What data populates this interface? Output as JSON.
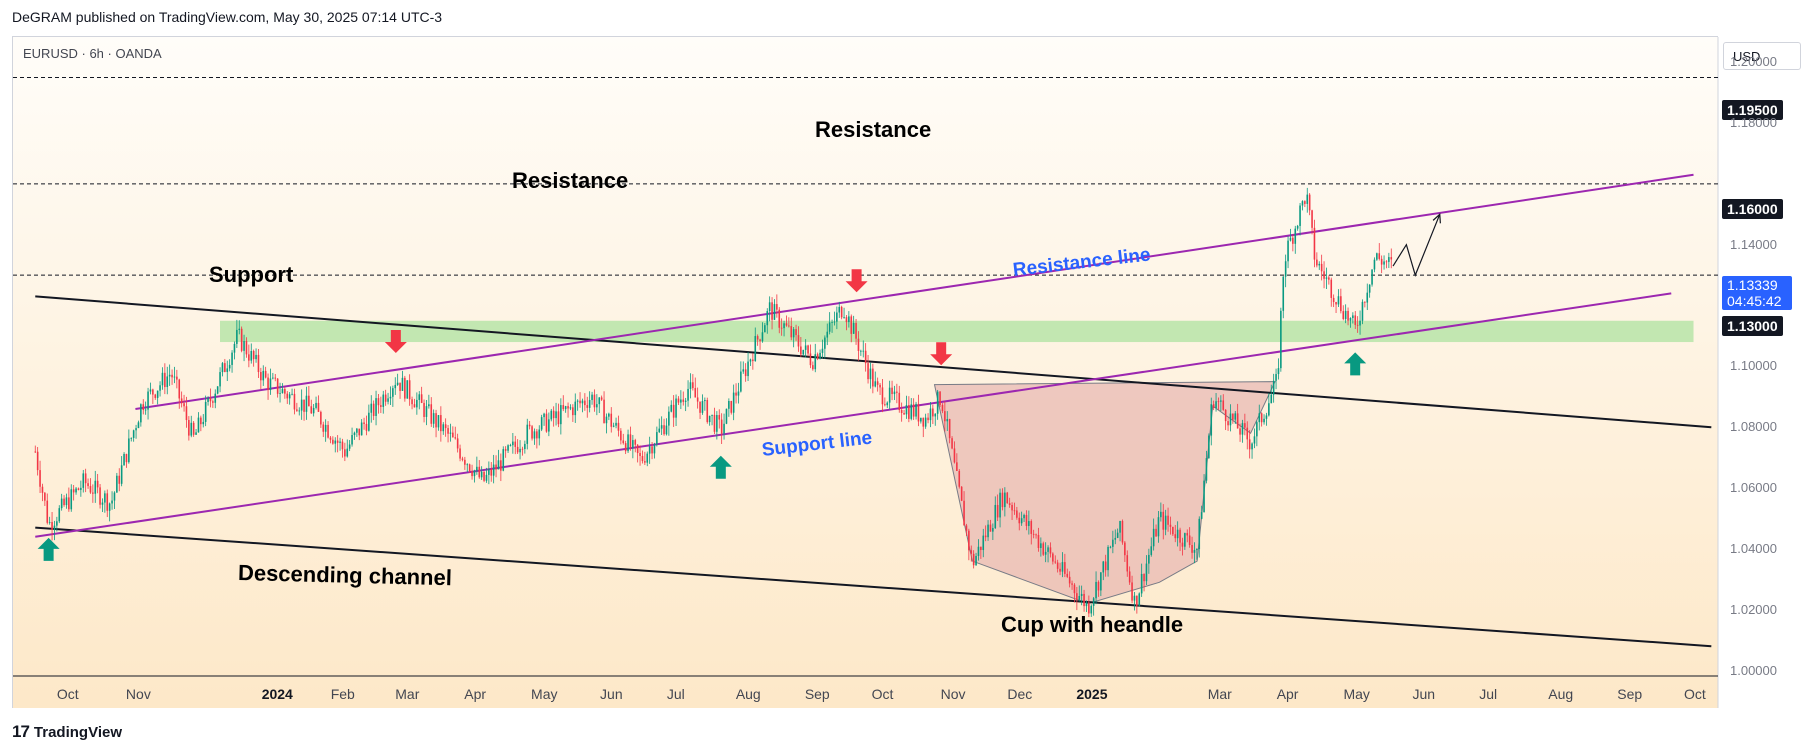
{
  "header": {
    "publisher": "DeGRAM published on TradingView.com, May 30, 2025 07:14 UTC-3"
  },
  "symbol_line": "EURUSD · 6h · OANDA",
  "currency": "USD",
  "footer": {
    "brand": "TradingView",
    "logo": "17"
  },
  "price_labels": {
    "p1": "1.19500",
    "p2": "1.16000",
    "p3": "1.13000"
  },
  "current_price": {
    "price": "1.13339",
    "countdown": "04:45:42"
  },
  "annotations": {
    "resistance_top": "Resistance",
    "resistance_mid": "Resistance",
    "support": "Support",
    "descending_channel": "Descending channel",
    "cup": "Cup with heandle",
    "resistance_line": "Resistance line",
    "support_line": "Support line"
  },
  "colors": {
    "bull": "#089981",
    "bear": "#f23645",
    "channel": "#131722",
    "trendline": "#9c27b0",
    "label_blue": "#2962ff",
    "support_zone": "#b7e4a8",
    "cup_fill": "#e7b7b0",
    "arrow_up": "#089981",
    "arrow_down": "#f23645"
  },
  "chart_data": {
    "type": "candlestick",
    "title": "",
    "symbol": "EURUSD",
    "timeframe": "6h",
    "exchange": "OANDA",
    "y_range": [
      1.0,
      1.21
    ],
    "y_ticks": [
      "1.20000",
      "1.18000",
      "1.14000",
      "1.10000",
      "1.08000",
      "1.06000",
      "1.04000",
      "1.02000",
      "1.00000"
    ],
    "x_ticks": [
      "Oct",
      "Nov",
      "2024",
      "Feb",
      "Mar",
      "Apr",
      "May",
      "Jun",
      "Jul",
      "Aug",
      "Sep",
      "Oct",
      "Nov",
      "Dec",
      "2025",
      "Mar",
      "Apr",
      "May",
      "Jun",
      "Jul",
      "Aug",
      "Sep",
      "Oct"
    ],
    "x_ticks_bold": [
      2,
      14
    ],
    "price_path": [
      [
        "2023-09-28",
        1.072
      ],
      [
        "2023-10-04",
        1.048
      ],
      [
        "2023-10-20",
        1.062
      ],
      [
        "2023-11-01",
        1.055
      ],
      [
        "2023-11-15",
        1.088
      ],
      [
        "2023-11-28",
        1.098
      ],
      [
        "2023-12-08",
        1.076
      ],
      [
        "2023-12-28",
        1.11
      ],
      [
        "2024-01-10",
        1.095
      ],
      [
        "2024-02-01",
        1.085
      ],
      [
        "2024-02-14",
        1.072
      ],
      [
        "2024-03-08",
        1.096
      ],
      [
        "2024-04-01",
        1.077
      ],
      [
        "2024-04-16",
        1.062
      ],
      [
        "2024-05-06",
        1.078
      ],
      [
        "2024-06-04",
        1.09
      ],
      [
        "2024-06-26",
        1.069
      ],
      [
        "2024-07-17",
        1.093
      ],
      [
        "2024-08-01",
        1.079
      ],
      [
        "2024-08-23",
        1.119
      ],
      [
        "2024-09-11",
        1.102
      ],
      [
        "2024-09-25",
        1.12
      ],
      [
        "2024-10-10",
        1.092
      ],
      [
        "2024-11-01",
        1.083
      ],
      [
        "2024-11-08",
        1.09
      ],
      [
        "2024-11-22",
        1.035
      ],
      [
        "2024-12-06",
        1.058
      ],
      [
        "2025-01-13",
        1.021
      ],
      [
        "2025-01-27",
        1.047
      ],
      [
        "2025-02-03",
        1.022
      ],
      [
        "2025-02-14",
        1.05
      ],
      [
        "2025-03-03",
        1.04
      ],
      [
        "2025-03-10",
        1.09
      ],
      [
        "2025-03-27",
        1.075
      ],
      [
        "2025-04-08",
        1.095
      ],
      [
        "2025-04-11",
        1.135
      ],
      [
        "2025-04-21",
        1.157
      ],
      [
        "2025-04-25",
        1.135
      ],
      [
        "2025-05-13",
        1.112
      ],
      [
        "2025-05-22",
        1.136
      ],
      [
        "2025-05-30",
        1.133
      ]
    ],
    "projection": [
      [
        "2025-05-30",
        1.133
      ],
      [
        "2025-06-05",
        1.14
      ],
      [
        "2025-06-09",
        1.13
      ],
      [
        "2025-06-20",
        1.15
      ]
    ],
    "horizontal_levels": [
      1.195,
      1.16,
      1.13
    ],
    "support_zone": [
      1.108,
      1.115
    ],
    "descending_channel": {
      "upper": [
        [
          "2023-09-28",
          1.123
        ],
        [
          "2025-10-20",
          1.08
        ]
      ],
      "lower": [
        [
          "2023-09-28",
          1.047
        ],
        [
          "2025-10-20",
          1.008
        ]
      ]
    },
    "ascending_channel": {
      "resistance": [
        [
          "2023-11-12",
          1.086
        ],
        [
          "2025-10-12",
          1.163
        ]
      ],
      "support": [
        [
          "2023-09-28",
          1.044
        ],
        [
          "2025-10-02",
          1.124
        ]
      ]
    },
    "cup": {
      "rim": [
        [
          "2024-11-05",
          1.094
        ],
        [
          "2025-04-07",
          1.095
        ]
      ],
      "bottom": [
        [
          "2024-11-05",
          1.094
        ],
        [
          "2024-11-22",
          1.036
        ],
        [
          "2025-01-13",
          1.022
        ],
        [
          "2025-02-14",
          1.029
        ],
        [
          "2025-03-03",
          1.036
        ],
        [
          "2025-03-10",
          1.087
        ],
        [
          "2025-03-27",
          1.078
        ],
        [
          "2025-04-07",
          1.095
        ]
      ]
    },
    "arrows_up": [
      [
        "2023-10-04",
        1.04
      ],
      [
        "2024-08-01",
        1.067
      ],
      [
        "2025-05-13",
        1.101
      ]
    ],
    "arrows_down": [
      [
        "2024-03-08",
        1.108
      ],
      [
        "2024-10-01",
        1.128
      ],
      [
        "2024-11-08",
        1.104
      ]
    ]
  }
}
